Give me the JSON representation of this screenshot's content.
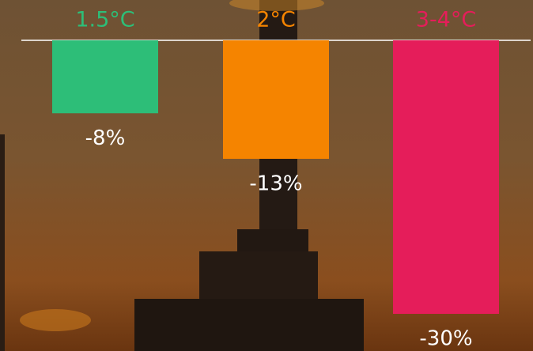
{
  "chart_data": {
    "type": "bar",
    "categories": [
      "1.5°C",
      "2°C",
      "3-4°C"
    ],
    "values": [
      -8,
      -13,
      -30
    ],
    "value_labels": [
      "-8%",
      "-13%",
      "-30%"
    ],
    "colors": [
      "#2dbe78",
      "#f58400",
      "#e51d5a"
    ]
  }
}
